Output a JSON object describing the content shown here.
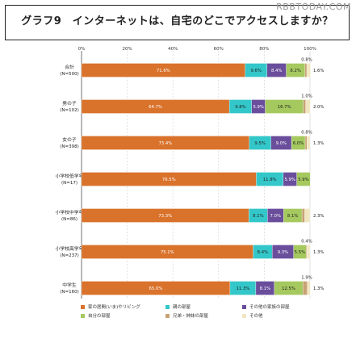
{
  "title": "グラフ9　インターネットは、自宅のどこでアクセスしますか？",
  "watermark": "RBBTODAY.COM",
  "chart_data": {
    "type": "bar",
    "orientation": "horizontal",
    "stacked": true,
    "xlim": [
      0,
      100
    ],
    "x_ticks": [
      "0%",
      "20%",
      "40%",
      "60%",
      "80%",
      "100%"
    ],
    "categories": [
      {
        "label": "合計",
        "sub": "(N=500)"
      },
      {
        "label": "男の子",
        "sub": "(N=102)"
      },
      {
        "label": "女の子",
        "sub": "(N=398)"
      },
      {
        "label": "小学校低学年",
        "sub": "(N=17)"
      },
      {
        "label": "小学校中学年",
        "sub": "(N=86)"
      },
      {
        "label": "小学校高学年",
        "sub": "(N=237)"
      },
      {
        "label": "中学生",
        "sub": "(N=160)"
      }
    ],
    "series": [
      {
        "name": "家の居間(いま)やリビング",
        "color": "#D9722B",
        "values": [
          71.6,
          64.7,
          73.4,
          76.5,
          73.3,
          75.1,
          65.0
        ],
        "labels": [
          "71.6%",
          "64.7%",
          "73.4%",
          "76.5%",
          "73.3%",
          "75.1%",
          "65.0%"
        ]
      },
      {
        "name": "親の部屋",
        "color": "#33C7C9",
        "values": [
          9.6,
          9.8,
          9.5,
          11.8,
          8.1,
          8.4,
          11.3
        ],
        "labels": [
          "9.6%",
          "9.8%",
          "9.5%",
          "11.8%",
          "8.1%",
          "8.4%",
          "11.3%"
        ]
      },
      {
        "name": "その他の家族の部屋",
        "color": "#6A4E9C",
        "values": [
          8.4,
          5.9,
          9.0,
          5.9,
          7.0,
          9.3,
          8.1
        ],
        "labels": [
          "8.4%",
          "5.9%",
          "9.0%",
          "5.9%",
          "7.0%",
          "9.3%",
          "8.1%"
        ]
      },
      {
        "name": "自分の部屋",
        "color": "#A5C95F",
        "values": [
          8.2,
          16.7,
          6.0,
          5.9,
          8.1,
          5.5,
          12.5
        ],
        "labels": [
          "8.2%",
          "16.7%",
          "6.0%",
          "5.9%",
          "8.1%",
          "5.5%",
          "12.5%"
        ]
      },
      {
        "name": "兄弟・姉妹の部屋",
        "color": "#C8A276",
        "values": [
          0.8,
          1.0,
          0.8,
          0.0,
          1.2,
          0.4,
          1.9
        ],
        "labels": [
          "0.8%",
          "1.0%",
          "0.8%",
          "",
          "",
          "0.4%",
          "1.9%"
        ]
      },
      {
        "name": "その他",
        "color": "#F0E6C0",
        "values": [
          1.6,
          2.0,
          1.3,
          0.0,
          2.3,
          1.3,
          1.3
        ],
        "labels": [
          "1.6%",
          "2.0%",
          "1.3%",
          "",
          "2.3%",
          "1.3%",
          "1.3%"
        ]
      }
    ],
    "legend_placement": "bottom",
    "grid": true
  }
}
